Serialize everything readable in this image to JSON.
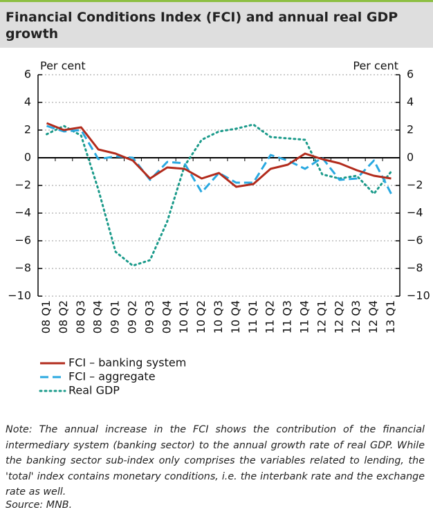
{
  "chart_data": {
    "type": "line",
    "title": "Financial Conditions Index (FCI) and annual real GDP growth",
    "y_label": "Per cent",
    "y2_label": "Per cent",
    "categories": [
      "08 Q1",
      "08 Q2",
      "08 Q3",
      "08 Q4",
      "09 Q1",
      "09 Q2",
      "09 Q3",
      "09 Q4",
      "10 Q1",
      "10 Q2",
      "10 Q3",
      "10 Q4",
      "11 Q1",
      "11 Q2",
      "11 Q3",
      "11 Q4",
      "12 Q1",
      "12 Q2",
      "12 Q3",
      "12 Q4",
      "13 Q1"
    ],
    "series": [
      {
        "name": "FCI – banking system",
        "color": "#b22b1c",
        "dash": "solid",
        "values": [
          2.5,
          2.0,
          2.2,
          0.6,
          0.3,
          -0.2,
          -1.5,
          -0.7,
          -0.8,
          -1.5,
          -1.1,
          -2.1,
          -1.9,
          -0.8,
          -0.5,
          0.3,
          -0.1,
          -0.4,
          -0.9,
          -1.3,
          -1.5
        ]
      },
      {
        "name": "FCI – aggregate",
        "color": "#29a8e0",
        "dash": "dashed",
        "values": [
          2.3,
          1.9,
          2.0,
          -0.1,
          0.1,
          0.0,
          -1.6,
          -0.3,
          -0.4,
          -2.5,
          -1.1,
          -1.8,
          -1.8,
          0.2,
          -0.2,
          -0.8,
          0.0,
          -1.6,
          -1.5,
          -0.2,
          -2.6
        ]
      },
      {
        "name": "Real GDP",
        "color": "#1a9a8a",
        "dash": "dotted",
        "values": [
          1.7,
          2.3,
          1.6,
          -2.3,
          -6.8,
          -7.8,
          -7.4,
          -4.6,
          -0.6,
          1.3,
          1.9,
          2.1,
          2.4,
          1.5,
          1.4,
          1.3,
          -1.2,
          -1.5,
          -1.3,
          -2.6,
          -1.0
        ]
      }
    ],
    "ylim": [
      -10,
      6
    ],
    "yticks": [
      {
        "value": -10,
        "label": "−10"
      },
      {
        "value": -8,
        "label": "−8"
      },
      {
        "value": -6,
        "label": "−6"
      },
      {
        "value": -4,
        "label": "−4"
      },
      {
        "value": -2,
        "label": "−2"
      },
      0,
      2,
      4,
      6
    ],
    "y2lim": [
      -10,
      6
    ],
    "y2ticks": [
      {
        "value": -10,
        "label": "−10"
      },
      {
        "value": -8,
        "label": "−8"
      },
      {
        "value": -6,
        "label": "−6"
      },
      {
        "value": -4,
        "label": "−4"
      },
      {
        "value": -2,
        "label": "−2"
      },
      0,
      2,
      4,
      6
    ],
    "grid": true,
    "legend": "bottom-left",
    "note": "Note: The annual increase in the FCI shows the contribution of the financial intermediary system (banking sector) to the annual growth rate of real GDP. While the banking sector sub-index only comprises the variables related to lending, the 'total' index contains monetary conditions, i.e. the interbank rate and the exchange rate as well.",
    "source": "Source: MNB."
  }
}
